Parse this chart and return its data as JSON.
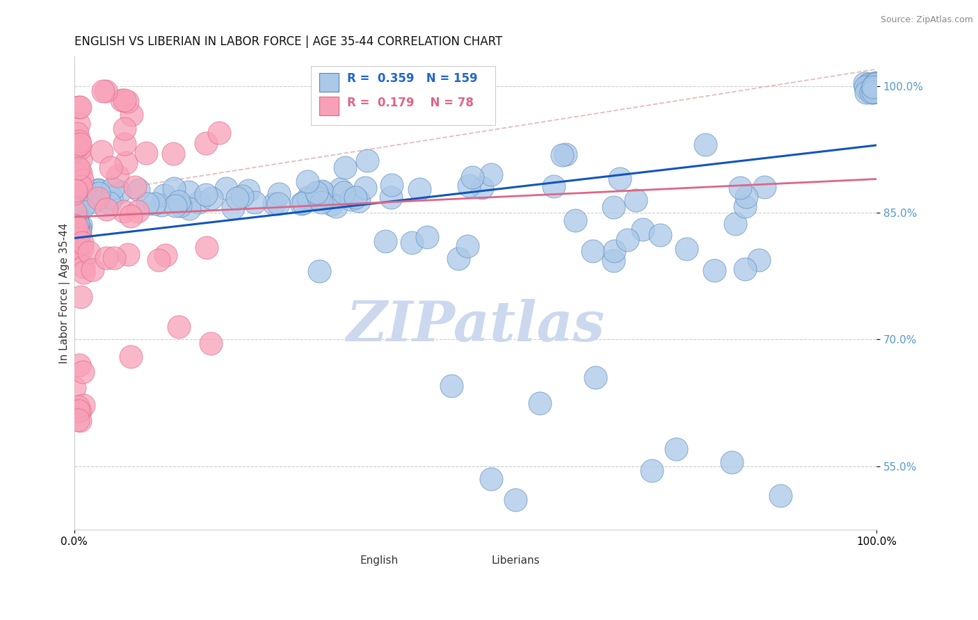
{
  "title": "ENGLISH VS LIBERIAN IN LABOR FORCE | AGE 35-44 CORRELATION CHART",
  "source": "Source: ZipAtlas.com",
  "ylabel": "In Labor Force | Age 35-44",
  "xlim": [
    0.0,
    1.0
  ],
  "ylim": [
    0.475,
    1.035
  ],
  "yticks": [
    0.55,
    0.7,
    0.85,
    1.0
  ],
  "ytick_labels": [
    "55.0%",
    "70.0%",
    "85.0%",
    "100.0%"
  ],
  "xtick_labels": [
    "0.0%",
    "100.0%"
  ],
  "legend_R_english": "0.359",
  "legend_N_english": "159",
  "legend_R_liberian": "0.179",
  "legend_N_liberian": "78",
  "english_color": "#aac8e8",
  "english_edge_color": "#5588bb",
  "liberian_color": "#f8a0b8",
  "liberian_edge_color": "#dd6688",
  "trend_english_color": "#1155bb",
  "trend_liberian_color": "#dd6688",
  "trend_dashed_color": "#ddaaaa",
  "watermark_color": "#ccd8ee",
  "background_color": "#ffffff",
  "title_fontsize": 12,
  "axis_label_fontsize": 11,
  "tick_fontsize": 11,
  "legend_fontsize": 12,
  "marker_size": 9
}
